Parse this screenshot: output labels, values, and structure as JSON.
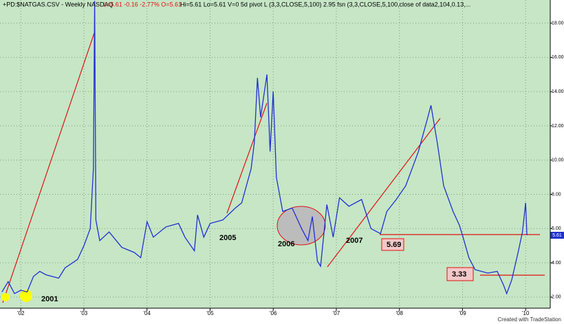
{
  "chart_data": {
    "type": "line",
    "header": [
      "+PD:$NATGAS.CSV - Weekly NASDAQ",
      "L=5.61 -0.16 -2.77% O=5.61",
      "Hi=5.61 Lo=5.61 V=0 5d pivot L (3,3,CLOSE,5,100)  2.95  fsn (3,3,CLOSE,5,100,close of data2,104,0.13,..."
    ],
    "footer": "Created with TradeStation",
    "annotations": [
      "2001",
      "2005",
      "2006",
      "2007",
      "5.69",
      "3.33"
    ],
    "last_price": 5.61,
    "color": "#1f2fd0",
    "background": "#c6e6c6",
    "grid": true,
    "xlim": [
      2001.67,
      2010.39
    ],
    "ylim": [
      1.35,
      19.35
    ],
    "xticks": [
      {
        "value": 2002,
        "label": "'02"
      },
      {
        "value": 2003,
        "label": "'03"
      },
      {
        "value": 2004,
        "label": "'04"
      },
      {
        "value": 2005,
        "label": "'05"
      },
      {
        "value": 2006,
        "label": "'06"
      },
      {
        "value": 2007,
        "label": "'07"
      },
      {
        "value": 2008,
        "label": "'08"
      },
      {
        "value": 2009,
        "label": "'09"
      },
      {
        "value": 2010,
        "label": "'10"
      }
    ],
    "yticks": [
      {
        "value": 2,
        "label": "2.00"
      },
      {
        "value": 4,
        "label": "4.00"
      },
      {
        "value": 6,
        "label": "6.00"
      },
      {
        "value": 8,
        "label": "8.00"
      },
      {
        "value": 10,
        "label": "10.00"
      },
      {
        "value": 12,
        "label": "12.00"
      },
      {
        "value": 14,
        "label": "14.00"
      },
      {
        "value": 16,
        "label": "16.00"
      },
      {
        "value": 18,
        "label": "18.00"
      }
    ],
    "x": [
      2001.7,
      2001.8,
      2001.9,
      2002.0,
      2002.1,
      2002.2,
      2002.3,
      2002.4,
      2002.6,
      2002.7,
      2002.9,
      2003.0,
      2003.1,
      2003.15,
      2003.17,
      2003.19,
      2003.25,
      2003.4,
      2003.6,
      2003.8,
      2003.9,
      2004.0,
      2004.1,
      2004.3,
      2004.5,
      2004.6,
      2004.75,
      2004.8,
      2004.9,
      2005.0,
      2005.2,
      2005.4,
      2005.5,
      2005.65,
      2005.7,
      2005.75,
      2005.8,
      2005.9,
      2005.95,
      2006.0,
      2006.05,
      2006.1,
      2006.15,
      2006.3,
      2006.45,
      2006.55,
      2006.62,
      2006.7,
      2006.75,
      2006.85,
      2006.95,
      2007.05,
      2007.2,
      2007.4,
      2007.55,
      2007.7,
      2007.8,
      2007.95,
      2008.1,
      2008.3,
      2008.45,
      2008.5,
      2008.6,
      2008.7,
      2008.85,
      2008.95,
      2009.0,
      2009.1,
      2009.2,
      2009.4,
      2009.55,
      2009.65,
      2009.7,
      2009.78,
      2009.88,
      2009.95,
      2010.0,
      2010.02
    ],
    "values": [
      2.3,
      2.9,
      2.2,
      2.4,
      2.3,
      3.2,
      3.5,
      3.3,
      3.1,
      3.7,
      4.2,
      5.0,
      6.0,
      9.5,
      19.3,
      6.5,
      5.3,
      5.8,
      4.9,
      4.6,
      4.3,
      6.4,
      5.5,
      6.1,
      6.3,
      5.5,
      4.7,
      6.8,
      5.5,
      6.3,
      6.5,
      7.2,
      7.5,
      9.5,
      11.0,
      14.8,
      12.5,
      15.0,
      10.5,
      14.0,
      9.0,
      8.0,
      7.0,
      7.2,
      6.0,
      5.3,
      6.7,
      4.1,
      3.8,
      7.4,
      5.5,
      7.8,
      7.3,
      7.7,
      6.0,
      5.7,
      7.0,
      7.7,
      8.5,
      10.5,
      12.5,
      13.2,
      11.0,
      8.5,
      7.0,
      6.2,
      5.6,
      4.3,
      3.6,
      3.4,
      3.5,
      2.7,
      2.2,
      3.0,
      4.6,
      5.8,
      7.5,
      5.61
    ]
  }
}
